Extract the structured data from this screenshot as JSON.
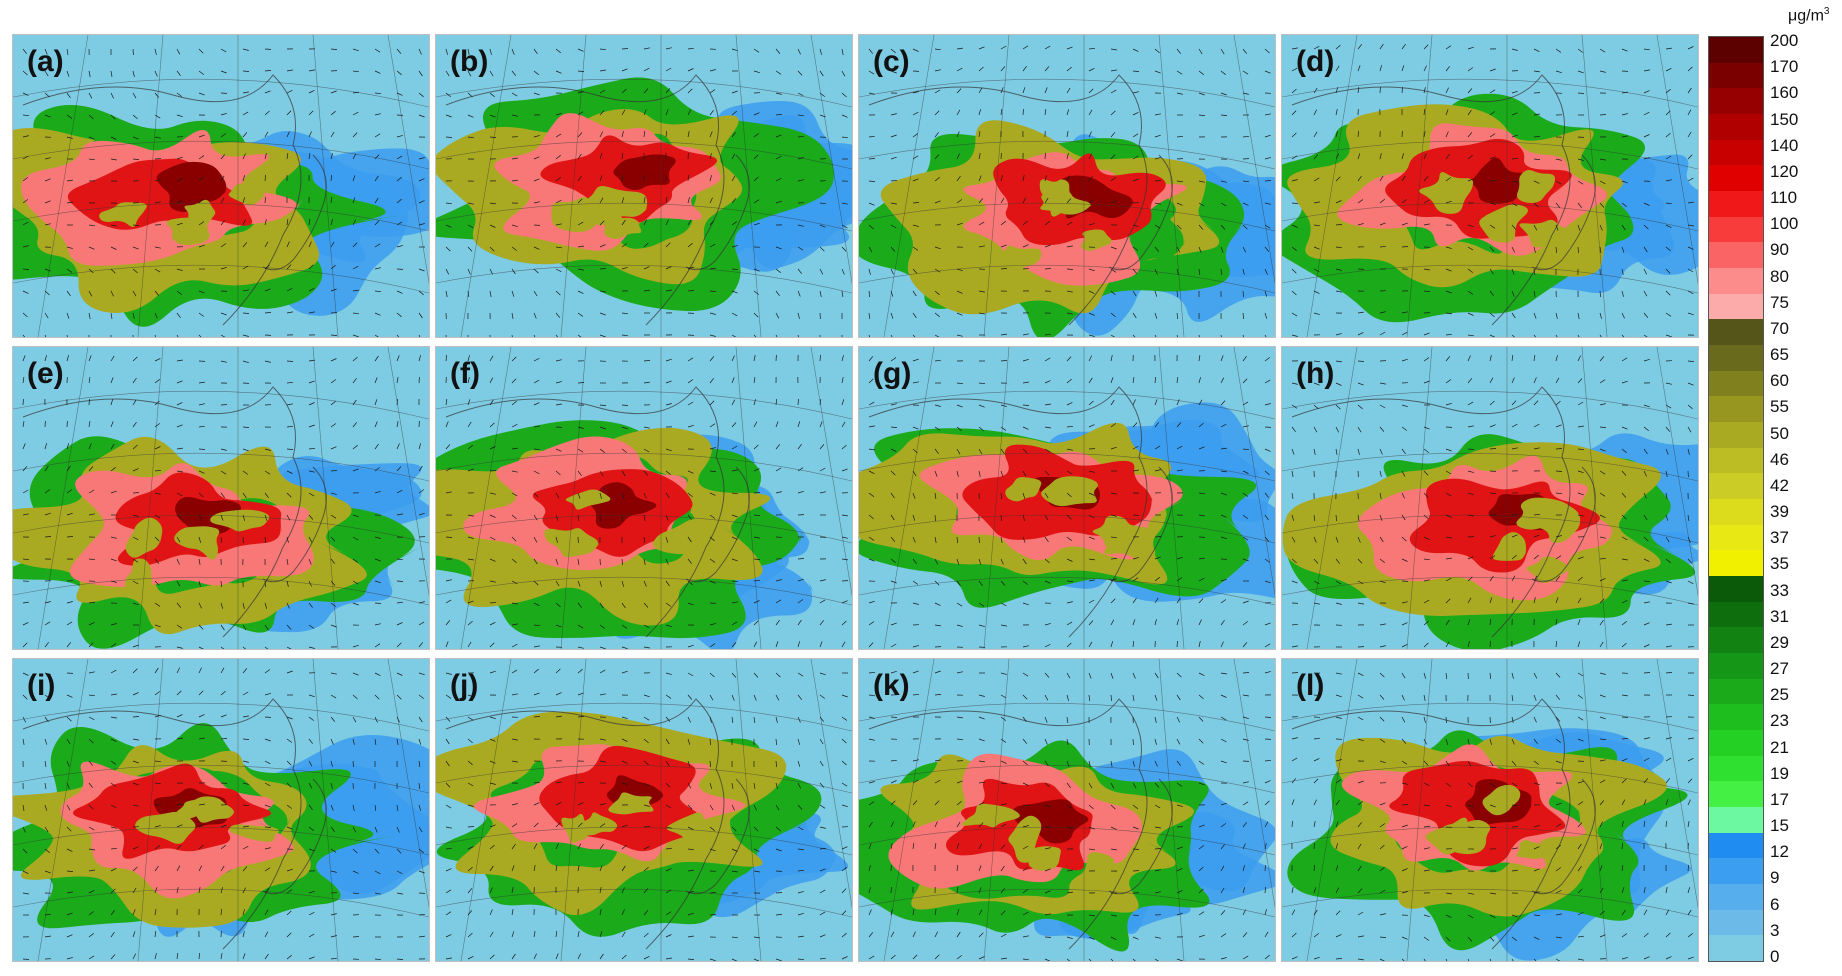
{
  "panels": [
    {
      "label": "(a)"
    },
    {
      "label": "(b)"
    },
    {
      "label": "(c)"
    },
    {
      "label": "(d)"
    },
    {
      "label": "(e)"
    },
    {
      "label": "(f)"
    },
    {
      "label": "(g)"
    },
    {
      "label": "(h)"
    },
    {
      "label": "(i)"
    },
    {
      "label": "(j)"
    },
    {
      "label": "(k)"
    },
    {
      "label": "(l)"
    }
  ],
  "colorbar": {
    "unit": "μg/m",
    "unit_exponent": "3",
    "levels": [
      "200",
      "170",
      "160",
      "150",
      "140",
      "120",
      "110",
      "100",
      "90",
      "80",
      "75",
      "70",
      "65",
      "60",
      "55",
      "50",
      "46",
      "42",
      "39",
      "37",
      "35",
      "33",
      "31",
      "29",
      "27",
      "25",
      "23",
      "21",
      "19",
      "17",
      "15",
      "12",
      "9",
      "6",
      "3",
      "0"
    ],
    "colors": [
      "#5c0000",
      "#7a0000",
      "#960000",
      "#b00000",
      "#c80000",
      "#e00000",
      "#f01818",
      "#f83c3c",
      "#fa6464",
      "#fc8c8c",
      "#fcaaaa",
      "#55551a",
      "#6a6a1c",
      "#80801e",
      "#969620",
      "#aaaa22",
      "#bcbc24",
      "#cccc26",
      "#dcdc1c",
      "#e8e814",
      "#f0f000",
      "#0a5a0a",
      "#0e6e0e",
      "#128212",
      "#169616",
      "#1aaa1a",
      "#1ebe1e",
      "#24d024",
      "#30e030",
      "#44f044",
      "#6cf8a0",
      "#1e8cf0",
      "#3c9ef0",
      "#56aeec",
      "#6cbae8",
      "#7ecbe4"
    ]
  },
  "colors": {
    "ocean": "#7ecbe4",
    "low_blue": "#3c9ef0",
    "green": "#1aaa1a",
    "olive": "#aaaa22",
    "pink": "#f87878",
    "red": "#e01414",
    "darkred": "#8a0000",
    "boundary": "#333333"
  }
}
